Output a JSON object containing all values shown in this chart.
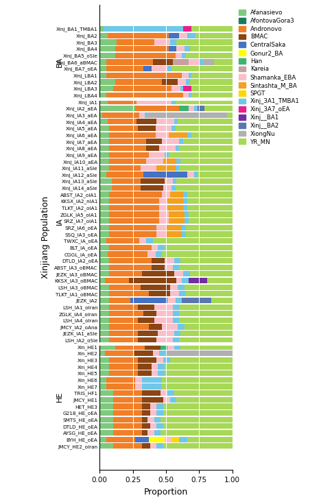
{
  "components": [
    "Afanasievo",
    "AfontovaGora3",
    "Andronovo",
    "BMAC",
    "CentralSaka",
    "Gonur2_BA",
    "Han",
    "Kareia",
    "Shamanka_EBA",
    "Sintashta_M_BA",
    "SPGT",
    "Xinj_3A1_TMBA1",
    "Xinj_3A7_oEA",
    "Xinj__BA1",
    "Xinj__BA2",
    "XiongNu",
    "YR_MN"
  ],
  "colors": [
    "#7fc97f",
    "#1a7a5e",
    "#f07f27",
    "#8b4513",
    "#4472c4",
    "#ffff00",
    "#3cb371",
    "#c8a0a0",
    "#f9c0cb",
    "#f4a020",
    "#ffd700",
    "#70c8e8",
    "#e8208a",
    "#7030a0",
    "#5b77b0",
    "#b0b0b0",
    "#a8d858"
  ],
  "groups": {
    "BA": [
      "Xinj_BA1_TMBA1",
      "Xinj_BA2",
      "Xinj_BA3",
      "Xinj_BA4",
      "Xinj_BA5_oSle",
      "Xinj_BA6_aBMAC",
      "Xinj_BA7_oEA",
      "Xinj_LBA1",
      "Xinj_LBA2",
      "Xinj_LBA3",
      "Xinj_LBA4"
    ],
    "IA": [
      "Xinj_IA1",
      "Xinj_IA2_aEA",
      "Xinj_IA3_aEA",
      "Xinj_IA4_aEA",
      "Xinj_IA5_aEA",
      "Xinj_IA6_aEA",
      "Xinj_IA7_aEA",
      "Xinj_IA8_aEA",
      "Xinj_IA9_aEA",
      "Xinj_IA10_aEA",
      "Xinj_IA11_aSle",
      "Xinj_IA12_aSle",
      "Xinj_IA13_aSle",
      "Xinj_IA14_aSle",
      "ABST_IA2_oIA1",
      "KKSX_IA2_nIA1",
      "TLKT_IA2_oIA1",
      "ZGLK_IA5_oIA1",
      "SRZ_IA7_oIA1",
      "SRZ_IA6_oEA",
      "SSQ_IA3_oEA",
      "TWXC_IA_oEA",
      "BLT_IA_oEA",
      "CGGL_IA_oEA",
      "DTLD_IA2_oEA",
      "ABST_IA3_oBMAC",
      "JEZK_IA3_oBMAC",
      "KKSX_IA3_oBMAC",
      "LSH_IA3_oBMAC",
      "TLKT_IA1_oBMAC",
      "JEZK_IA2",
      "LSH_IA1_oIran",
      "ZGLK_IA4_oIran",
      "LSH_IA4_oIran",
      "JMCY_IA2_oAna",
      "JEZK_IA1_aSle",
      "LSH_IA2_oSle"
    ],
    "HE": [
      "Xin_HE1",
      "Xin_HE2",
      "Xin_HE3",
      "Xin_HE4",
      "Xin_HE5",
      "Xin_HE6",
      "Xin_HE7",
      "TRIS_HF1",
      "JMCY_HE1",
      "HET_HE3",
      "G218_HE_oEA",
      "SMTS_HE_oEA",
      "DTLD_HE_oEA",
      "AYSG_HE_oEA",
      "BYH_HE_oEA",
      "JMCY_HE2_oIran"
    ]
  },
  "data": {
    "Xinj_BA1_TMBA1": [
      0.03,
      0.0,
      0.0,
      0.0,
      0.0,
      0.0,
      0.0,
      0.0,
      0.0,
      0.0,
      0.0,
      0.6,
      0.06,
      0.0,
      0.0,
      0.0,
      0.31
    ],
    "Xinj_BA2": [
      0.06,
      0.0,
      0.46,
      0.0,
      0.08,
      0.0,
      0.0,
      0.0,
      0.06,
      0.0,
      0.0,
      0.06,
      0.0,
      0.0,
      0.0,
      0.0,
      0.28
    ],
    "Xinj_BA3": [
      0.13,
      0.0,
      0.28,
      0.0,
      0.0,
      0.0,
      0.0,
      0.0,
      0.12,
      0.0,
      0.0,
      0.05,
      0.0,
      0.0,
      0.0,
      0.0,
      0.42
    ],
    "Xinj_BA4": [
      0.12,
      0.0,
      0.4,
      0.0,
      0.06,
      0.0,
      0.0,
      0.0,
      0.06,
      0.0,
      0.0,
      0.04,
      0.0,
      0.0,
      0.0,
      0.0,
      0.32
    ],
    "Xinj_BA5_oSle": [
      0.12,
      0.0,
      0.45,
      0.0,
      0.0,
      0.0,
      0.0,
      0.0,
      0.05,
      0.0,
      0.0,
      0.03,
      0.0,
      0.0,
      0.0,
      0.0,
      0.35
    ],
    "Xinj_BA6_aBMAC": [
      0.05,
      0.0,
      0.35,
      0.15,
      0.0,
      0.0,
      0.0,
      0.12,
      0.08,
      0.0,
      0.0,
      0.03,
      0.0,
      0.0,
      0.0,
      0.08,
      0.14
    ],
    "Xinj_BA7_oEA": [
      0.05,
      0.0,
      0.28,
      0.0,
      0.06,
      0.0,
      0.0,
      0.0,
      0.12,
      0.0,
      0.0,
      0.03,
      0.0,
      0.0,
      0.0,
      0.0,
      0.46
    ],
    "Xinj_LBA1": [
      0.05,
      0.0,
      0.57,
      0.0,
      0.0,
      0.0,
      0.0,
      0.0,
      0.05,
      0.0,
      0.0,
      0.02,
      0.0,
      0.0,
      0.0,
      0.0,
      0.31
    ],
    "Xinj_LBA2": [
      0.12,
      0.0,
      0.35,
      0.12,
      0.0,
      0.0,
      0.0,
      0.0,
      0.06,
      0.0,
      0.0,
      0.03,
      0.0,
      0.0,
      0.0,
      0.0,
      0.32
    ],
    "Xinj_LBA3": [
      0.1,
      0.0,
      0.44,
      0.0,
      0.0,
      0.0,
      0.0,
      0.0,
      0.07,
      0.0,
      0.0,
      0.02,
      0.06,
      0.0,
      0.0,
      0.0,
      0.31
    ],
    "Xinj_LBA4": [
      0.05,
      0.0,
      0.58,
      0.0,
      0.0,
      0.0,
      0.0,
      0.0,
      0.04,
      0.0,
      0.0,
      0.02,
      0.0,
      0.0,
      0.0,
      0.0,
      0.31
    ],
    "Xinj_IA1": [
      0.06,
      0.0,
      0.22,
      0.0,
      0.0,
      0.0,
      0.0,
      0.0,
      0.26,
      0.0,
      0.0,
      0.03,
      0.0,
      0.0,
      0.0,
      0.0,
      0.43
    ],
    "Xinj_IA2_aEA": [
      0.27,
      0.0,
      0.33,
      0.0,
      0.0,
      0.0,
      0.07,
      0.0,
      0.04,
      0.0,
      0.0,
      0.03,
      0.0,
      0.0,
      0.05,
      0.0,
      0.21
    ],
    "Xinj_IA3_aEA": [
      0.02,
      0.0,
      0.28,
      0.0,
      0.0,
      0.0,
      0.0,
      0.0,
      0.04,
      0.0,
      0.0,
      0.02,
      0.0,
      0.0,
      0.0,
      0.6,
      0.04
    ],
    "Xinj_IA4_aEA": [
      0.06,
      0.0,
      0.22,
      0.15,
      0.0,
      0.0,
      0.0,
      0.0,
      0.13,
      0.0,
      0.0,
      0.03,
      0.0,
      0.0,
      0.0,
      0.0,
      0.41
    ],
    "Xinj_IA5_aEA": [
      0.07,
      0.0,
      0.22,
      0.13,
      0.0,
      0.0,
      0.0,
      0.0,
      0.12,
      0.0,
      0.0,
      0.03,
      0.0,
      0.0,
      0.0,
      0.0,
      0.43
    ],
    "Xinj_IA6_aEA": [
      0.07,
      0.0,
      0.35,
      0.0,
      0.0,
      0.0,
      0.0,
      0.0,
      0.1,
      0.14,
      0.0,
      0.03,
      0.0,
      0.0,
      0.0,
      0.0,
      0.31
    ],
    "Xinj_IA7_aEA": [
      0.07,
      0.0,
      0.28,
      0.12,
      0.0,
      0.0,
      0.0,
      0.0,
      0.13,
      0.0,
      0.0,
      0.03,
      0.0,
      0.0,
      0.0,
      0.0,
      0.37
    ],
    "Xinj_IA8_aEA": [
      0.07,
      0.0,
      0.28,
      0.1,
      0.0,
      0.0,
      0.0,
      0.0,
      0.12,
      0.0,
      0.0,
      0.03,
      0.0,
      0.0,
      0.0,
      0.0,
      0.4
    ],
    "Xinj_IA9_aEA": [
      0.07,
      0.0,
      0.3,
      0.0,
      0.0,
      0.0,
      0.0,
      0.0,
      0.12,
      0.0,
      0.0,
      0.03,
      0.0,
      0.0,
      0.0,
      0.0,
      0.48
    ],
    "Xinj_IA10_aEA": [
      0.07,
      0.0,
      0.28,
      0.0,
      0.0,
      0.0,
      0.0,
      0.0,
      0.13,
      0.1,
      0.0,
      0.03,
      0.0,
      0.0,
      0.0,
      0.0,
      0.39
    ],
    "Xinj_IA11_aSle": [
      0.07,
      0.0,
      0.24,
      0.0,
      0.0,
      0.0,
      0.0,
      0.0,
      0.12,
      0.14,
      0.0,
      0.03,
      0.0,
      0.0,
      0.0,
      0.0,
      0.4
    ],
    "Xinj_IA12_aSle": [
      0.05,
      0.0,
      0.28,
      0.0,
      0.33,
      0.0,
      0.0,
      0.0,
      0.05,
      0.0,
      0.0,
      0.03,
      0.0,
      0.0,
      0.0,
      0.0,
      0.26
    ],
    "Xinj_IA13_aSle": [
      0.09,
      0.0,
      0.22,
      0.18,
      0.0,
      0.0,
      0.0,
      0.0,
      0.06,
      0.0,
      0.0,
      0.03,
      0.0,
      0.0,
      0.0,
      0.0,
      0.42
    ],
    "Xinj_IA14_aSle": [
      0.09,
      0.0,
      0.22,
      0.17,
      0.0,
      0.0,
      0.0,
      0.0,
      0.06,
      0.0,
      0.0,
      0.03,
      0.0,
      0.0,
      0.0,
      0.0,
      0.43
    ],
    "ABST_IA2_oIA1": [
      0.07,
      0.0,
      0.4,
      0.0,
      0.0,
      0.0,
      0.0,
      0.0,
      0.06,
      0.1,
      0.0,
      0.03,
      0.0,
      0.0,
      0.0,
      0.0,
      0.34
    ],
    "KKSX_IA2_nIA1": [
      0.07,
      0.0,
      0.38,
      0.0,
      0.0,
      0.0,
      0.0,
      0.0,
      0.06,
      0.12,
      0.0,
      0.03,
      0.0,
      0.0,
      0.0,
      0.0,
      0.34
    ],
    "TLKT_IA2_oIA1": [
      0.07,
      0.0,
      0.38,
      0.0,
      0.0,
      0.0,
      0.0,
      0.0,
      0.06,
      0.12,
      0.0,
      0.03,
      0.0,
      0.0,
      0.0,
      0.0,
      0.34
    ],
    "ZGLK_IA5_oIA1": [
      0.07,
      0.0,
      0.38,
      0.0,
      0.0,
      0.0,
      0.0,
      0.0,
      0.07,
      0.12,
      0.0,
      0.03,
      0.0,
      0.0,
      0.0,
      0.0,
      0.33
    ],
    "SRZ_IA7_oIA1": [
      0.07,
      0.0,
      0.38,
      0.0,
      0.0,
      0.0,
      0.0,
      0.0,
      0.07,
      0.12,
      0.0,
      0.03,
      0.0,
      0.0,
      0.0,
      0.0,
      0.33
    ],
    "SRZ_IA6_oEA": [
      0.07,
      0.0,
      0.36,
      0.0,
      0.0,
      0.0,
      0.0,
      0.0,
      0.07,
      0.12,
      0.0,
      0.03,
      0.0,
      0.0,
      0.0,
      0.0,
      0.35
    ],
    "SSQ_IA3_oEA": [
      0.07,
      0.0,
      0.36,
      0.0,
      0.0,
      0.0,
      0.0,
      0.0,
      0.07,
      0.12,
      0.0,
      0.03,
      0.0,
      0.0,
      0.0,
      0.0,
      0.35
    ],
    "TWXC_IA_oEA": [
      0.05,
      0.0,
      0.25,
      0.0,
      0.0,
      0.0,
      0.0,
      0.0,
      0.05,
      0.0,
      0.0,
      0.05,
      0.0,
      0.0,
      0.0,
      0.0,
      0.6
    ],
    "BLT_IA_oEA": [
      0.07,
      0.0,
      0.32,
      0.0,
      0.0,
      0.0,
      0.0,
      0.0,
      0.05,
      0.0,
      0.0,
      0.05,
      0.0,
      0.0,
      0.0,
      0.0,
      0.51
    ],
    "CGGL_IA_oEA": [
      0.06,
      0.0,
      0.3,
      0.0,
      0.0,
      0.0,
      0.0,
      0.0,
      0.06,
      0.0,
      0.0,
      0.05,
      0.0,
      0.0,
      0.0,
      0.0,
      0.53
    ],
    "DTLD_IA2_oEA": [
      0.07,
      0.0,
      0.32,
      0.1,
      0.0,
      0.0,
      0.0,
      0.0,
      0.07,
      0.0,
      0.0,
      0.05,
      0.0,
      0.0,
      0.0,
      0.0,
      0.39
    ],
    "ABST_IA3_oBMAC": [
      0.07,
      0.0,
      0.32,
      0.1,
      0.0,
      0.0,
      0.0,
      0.0,
      0.06,
      0.0,
      0.0,
      0.05,
      0.0,
      0.0,
      0.0,
      0.0,
      0.4
    ],
    "JEZK_IA3_oBMAC": [
      0.07,
      0.0,
      0.25,
      0.24,
      0.0,
      0.0,
      0.0,
      0.0,
      0.07,
      0.0,
      0.0,
      0.05,
      0.0,
      0.0,
      0.0,
      0.0,
      0.32
    ],
    "KKSX_IA3_oBMAC": [
      0.04,
      0.0,
      0.18,
      0.36,
      0.0,
      0.0,
      0.0,
      0.0,
      0.04,
      0.0,
      0.0,
      0.05,
      0.0,
      0.14,
      0.0,
      0.0,
      0.19
    ],
    "LSH_IA3_oBMAC": [
      0.07,
      0.0,
      0.24,
      0.22,
      0.0,
      0.0,
      0.0,
      0.0,
      0.06,
      0.0,
      0.0,
      0.05,
      0.0,
      0.0,
      0.0,
      0.0,
      0.36
    ],
    "TLKT_IA1_oBMAC": [
      0.07,
      0.0,
      0.3,
      0.16,
      0.0,
      0.0,
      0.0,
      0.0,
      0.07,
      0.0,
      0.0,
      0.05,
      0.0,
      0.0,
      0.0,
      0.0,
      0.35
    ],
    "JEZK_IA2": [
      0.07,
      0.0,
      0.16,
      0.0,
      0.28,
      0.0,
      0.0,
      0.0,
      0.06,
      0.0,
      0.0,
      0.05,
      0.0,
      0.0,
      0.22,
      0.0,
      0.16
    ],
    "LSH_IA1_oIran": [
      0.07,
      0.0,
      0.22,
      0.12,
      0.0,
      0.0,
      0.0,
      0.0,
      0.14,
      0.0,
      0.0,
      0.05,
      0.0,
      0.0,
      0.0,
      0.0,
      0.4
    ],
    "ZGLK_IA4_oIran": [
      0.07,
      0.0,
      0.26,
      0.1,
      0.0,
      0.0,
      0.0,
      0.0,
      0.12,
      0.0,
      0.0,
      0.05,
      0.0,
      0.0,
      0.0,
      0.0,
      0.4
    ],
    "LSH_IA4_oIran": [
      0.07,
      0.0,
      0.22,
      0.12,
      0.0,
      0.0,
      0.0,
      0.0,
      0.14,
      0.0,
      0.0,
      0.05,
      0.0,
      0.0,
      0.0,
      0.0,
      0.4
    ],
    "JMCY_IA2_oAna": [
      0.07,
      0.0,
      0.3,
      0.1,
      0.0,
      0.0,
      0.0,
      0.0,
      0.12,
      0.0,
      0.0,
      0.05,
      0.0,
      0.0,
      0.0,
      0.0,
      0.36
    ],
    "JEZK_IA1_aSle": [
      0.07,
      0.0,
      0.22,
      0.15,
      0.0,
      0.0,
      0.0,
      0.0,
      0.12,
      0.0,
      0.0,
      0.05,
      0.0,
      0.0,
      0.0,
      0.0,
      0.39
    ],
    "LSH_IA2_oSle": [
      0.07,
      0.0,
      0.22,
      0.14,
      0.0,
      0.0,
      0.0,
      0.0,
      0.12,
      0.0,
      0.0,
      0.05,
      0.0,
      0.0,
      0.0,
      0.0,
      0.4
    ],
    "Xin_HE1": [
      0.12,
      0.0,
      0.22,
      0.12,
      0.0,
      0.0,
      0.05,
      0.0,
      0.05,
      0.0,
      0.0,
      0.05,
      0.0,
      0.0,
      0.0,
      0.0,
      0.39
    ],
    "Xin_HE2": [
      0.04,
      0.0,
      0.22,
      0.14,
      0.0,
      0.0,
      0.0,
      0.0,
      0.05,
      0.0,
      0.0,
      0.05,
      0.0,
      0.0,
      0.0,
      0.5,
      0.0
    ],
    "Xin_HE3": [
      0.07,
      0.0,
      0.22,
      0.14,
      0.0,
      0.0,
      0.0,
      0.0,
      0.05,
      0.0,
      0.0,
      0.05,
      0.0,
      0.0,
      0.0,
      0.0,
      0.47
    ],
    "Xin_HE4": [
      0.07,
      0.0,
      0.22,
      0.1,
      0.0,
      0.0,
      0.0,
      0.0,
      0.05,
      0.0,
      0.0,
      0.05,
      0.0,
      0.0,
      0.0,
      0.0,
      0.51
    ],
    "Xin_HE5": [
      0.07,
      0.0,
      0.22,
      0.1,
      0.0,
      0.0,
      0.0,
      0.0,
      0.05,
      0.0,
      0.0,
      0.05,
      0.0,
      0.0,
      0.0,
      0.0,
      0.51
    ],
    "Xin_HE6": [
      0.05,
      0.0,
      0.22,
      0.0,
      0.0,
      0.0,
      0.0,
      0.0,
      0.05,
      0.0,
      0.0,
      0.15,
      0.0,
      0.0,
      0.0,
      0.0,
      0.53
    ],
    "Xin_HE7": [
      0.05,
      0.0,
      0.22,
      0.0,
      0.0,
      0.0,
      0.0,
      0.0,
      0.05,
      0.0,
      0.0,
      0.15,
      0.0,
      0.0,
      0.0,
      0.0,
      0.53
    ],
    "TRIS_HF1": [
      0.1,
      0.0,
      0.22,
      0.14,
      0.0,
      0.0,
      0.0,
      0.0,
      0.05,
      0.0,
      0.0,
      0.05,
      0.0,
      0.0,
      0.0,
      0.0,
      0.44
    ],
    "JMCY_HE1": [
      0.1,
      0.0,
      0.22,
      0.16,
      0.0,
      0.0,
      0.0,
      0.0,
      0.05,
      0.0,
      0.0,
      0.05,
      0.0,
      0.0,
      0.0,
      0.0,
      0.42
    ],
    "HET_HE3": [
      0.1,
      0.0,
      0.22,
      0.06,
      0.0,
      0.0,
      0.0,
      0.0,
      0.05,
      0.0,
      0.0,
      0.05,
      0.0,
      0.0,
      0.0,
      0.0,
      0.52
    ],
    "G218_HE_oEA": [
      0.1,
      0.0,
      0.22,
      0.06,
      0.0,
      0.0,
      0.0,
      0.0,
      0.05,
      0.0,
      0.0,
      0.05,
      0.0,
      0.0,
      0.0,
      0.0,
      0.52
    ],
    "SMTS_HE_oEA": [
      0.1,
      0.0,
      0.22,
      0.04,
      0.0,
      0.0,
      0.0,
      0.0,
      0.05,
      0.0,
      0.0,
      0.05,
      0.0,
      0.0,
      0.0,
      0.0,
      0.54
    ],
    "DTLD_HE_oEA": [
      0.1,
      0.0,
      0.22,
      0.06,
      0.0,
      0.0,
      0.0,
      0.0,
      0.05,
      0.0,
      0.0,
      0.05,
      0.0,
      0.0,
      0.0,
      0.0,
      0.52
    ],
    "AYSG_HE_oEA": [
      0.1,
      0.0,
      0.22,
      0.04,
      0.0,
      0.0,
      0.0,
      0.0,
      0.05,
      0.0,
      0.0,
      0.05,
      0.0,
      0.0,
      0.0,
      0.0,
      0.54
    ],
    "BYH_HE_oEA": [
      0.05,
      0.0,
      0.22,
      0.0,
      0.1,
      0.12,
      0.0,
      0.0,
      0.05,
      0.0,
      0.06,
      0.06,
      0.0,
      0.0,
      0.0,
      0.0,
      0.34
    ],
    "JMCY_HE2_oIran": [
      0.1,
      0.0,
      0.22,
      0.06,
      0.0,
      0.0,
      0.0,
      0.0,
      0.05,
      0.0,
      0.0,
      0.05,
      0.0,
      0.0,
      0.0,
      0.0,
      0.52
    ]
  },
  "group_order": [
    "BA",
    "IA",
    "HE"
  ],
  "group_labels": {
    "BA": "BA",
    "IA": "IA",
    "HE": "HE"
  },
  "xlabel": "Proportion",
  "ylabel": "Xinjiang Population",
  "xlim": [
    0.0,
    1.0
  ],
  "xticks": [
    0.0,
    0.25,
    0.5,
    0.75,
    1.0
  ],
  "bar_height": 0.85,
  "figsize": [
    4.84,
    7.29
  ],
  "dpi": 100
}
